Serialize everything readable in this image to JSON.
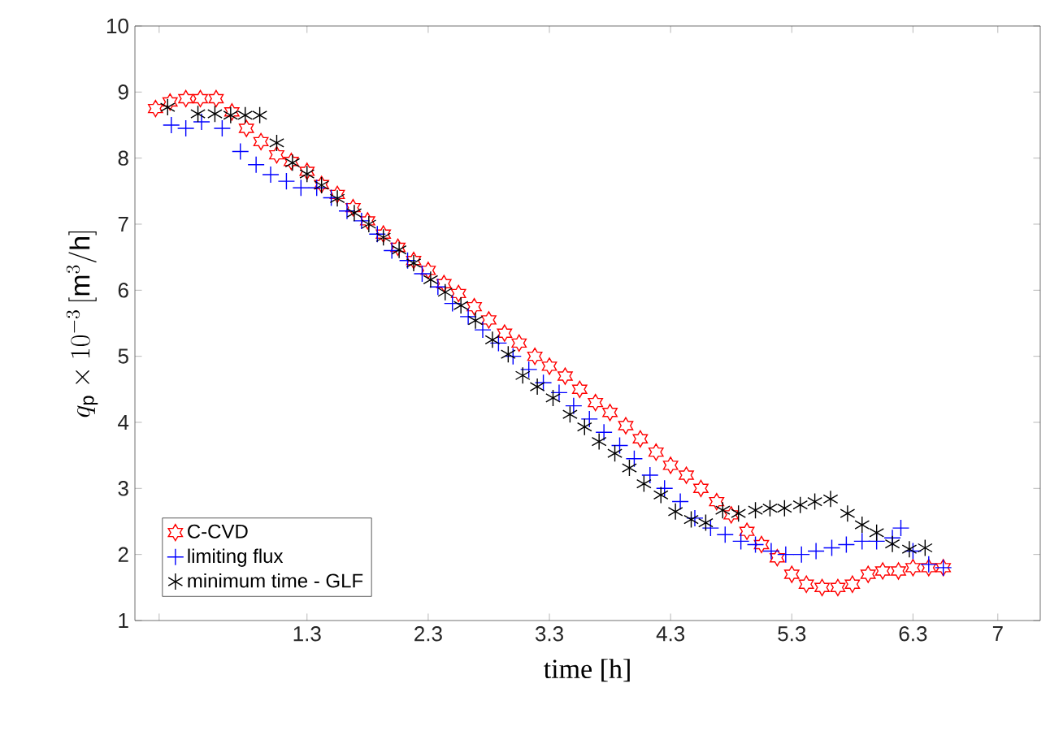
{
  "chart_data": {
    "type": "scatter",
    "xlabel": "time [h]",
    "ylabel": "q_{\\mathrm{p}}\\times 10^{-3}\\,[\\mathrm{m}^3/\\mathrm{h}]",
    "xlim": [
      -0.12,
      7.35
    ],
    "ylim": [
      1,
      10
    ],
    "xticks": [
      {
        "value": 0.08,
        "label": null
      },
      1.3,
      2.3,
      3.3,
      4.3,
      5.3,
      6.3,
      7
    ],
    "yticks": [
      1,
      2,
      3,
      4,
      5,
      6,
      7,
      8,
      9,
      10
    ],
    "legend": "bottom left",
    "grid": false,
    "series": [
      {
        "name": "C-CVD",
        "color": "#ff0000",
        "x": [
          0.05,
          0.17,
          0.3,
          0.42,
          0.55,
          0.68,
          0.8,
          0.92,
          1.05,
          1.17,
          1.3,
          1.42,
          1.55,
          1.68,
          1.8,
          1.93,
          2.05,
          2.18,
          2.3,
          2.43,
          2.55,
          2.68,
          2.8,
          2.93,
          3.05,
          3.18,
          3.3,
          3.43,
          3.55,
          3.68,
          3.8,
          3.93,
          4.05,
          4.18,
          4.3,
          4.43,
          4.55,
          4.68,
          4.8,
          4.93,
          5.05,
          5.18,
          5.3,
          5.42,
          5.55,
          5.68,
          5.8,
          5.93,
          6.05,
          6.18,
          6.3,
          6.43,
          6.55
        ],
        "values": [
          8.75,
          8.85,
          8.9,
          8.9,
          8.9,
          8.7,
          8.45,
          8.25,
          8.05,
          7.95,
          7.8,
          7.6,
          7.45,
          7.25,
          7.05,
          6.85,
          6.65,
          6.45,
          6.3,
          6.1,
          5.95,
          5.75,
          5.55,
          5.35,
          5.2,
          5.0,
          4.85,
          4.7,
          4.5,
          4.3,
          4.15,
          3.95,
          3.75,
          3.55,
          3.35,
          3.2,
          3.0,
          2.8,
          2.6,
          2.35,
          2.15,
          1.95,
          1.7,
          1.55,
          1.5,
          1.5,
          1.55,
          1.7,
          1.75,
          1.75,
          1.8,
          1.8,
          1.8
        ]
      },
      {
        "name": "limiting flux",
        "color": "#0000ff",
        "marker": "cross",
        "x": [
          0.18,
          0.3,
          0.43,
          0.6,
          0.75,
          0.88,
          1.0,
          1.13,
          1.25,
          1.38,
          1.5,
          1.63,
          1.75,
          1.88,
          2.0,
          2.13,
          2.25,
          2.38,
          2.5,
          2.63,
          2.75,
          2.88,
          3.0,
          3.13,
          3.25,
          3.38,
          3.5,
          3.63,
          3.75,
          3.88,
          4.0,
          4.13,
          4.25,
          4.38,
          4.5,
          4.63,
          4.75,
          4.88,
          5.0,
          5.13,
          5.25,
          5.38,
          5.5,
          5.63,
          5.75,
          5.88,
          6.0,
          6.13,
          6.2,
          6.3,
          6.43,
          6.55
        ],
        "values": [
          8.5,
          8.45,
          8.55,
          8.45,
          8.1,
          7.9,
          7.75,
          7.65,
          7.55,
          7.55,
          7.4,
          7.2,
          7.05,
          6.85,
          6.6,
          6.45,
          6.25,
          6.05,
          5.8,
          5.6,
          5.4,
          5.2,
          5.0,
          4.8,
          4.6,
          4.45,
          4.25,
          4.05,
          3.85,
          3.65,
          3.45,
          3.2,
          3.0,
          2.8,
          2.55,
          2.4,
          2.3,
          2.2,
          2.15,
          2.05,
          2.0,
          2.0,
          2.05,
          2.1,
          2.15,
          2.2,
          2.2,
          2.25,
          2.4,
          2.05,
          1.85,
          1.8
        ]
      },
      {
        "name": "minimum time - GLF",
        "color": "#000000",
        "x": [
          0.15,
          0.4,
          0.54,
          0.67,
          0.79,
          0.91,
          1.05,
          1.18,
          1.3,
          1.42,
          1.55,
          1.69,
          1.81,
          1.93,
          2.06,
          2.18,
          2.32,
          2.44,
          2.57,
          2.69,
          2.83,
          2.96,
          3.08,
          3.2,
          3.33,
          3.47,
          3.59,
          3.71,
          3.84,
          3.96,
          4.08,
          4.22,
          4.34,
          4.47,
          4.59,
          4.73,
          4.86,
          5.0,
          5.12,
          5.24,
          5.37,
          5.49,
          5.62,
          5.76,
          5.88,
          6.0,
          6.13,
          6.27,
          6.4
        ],
        "values": [
          8.77,
          8.67,
          8.67,
          8.65,
          8.65,
          8.65,
          8.23,
          7.93,
          7.76,
          7.59,
          7.39,
          7.17,
          7.0,
          6.8,
          6.61,
          6.41,
          6.16,
          5.97,
          5.77,
          5.54,
          5.25,
          5.03,
          4.71,
          4.54,
          4.37,
          4.12,
          3.93,
          3.71,
          3.53,
          3.31,
          3.07,
          2.9,
          2.65,
          2.53,
          2.48,
          2.67,
          2.62,
          2.67,
          2.7,
          2.7,
          2.75,
          2.8,
          2.84,
          2.62,
          2.45,
          2.33,
          2.16,
          2.08,
          2.1
        ]
      }
    ]
  }
}
